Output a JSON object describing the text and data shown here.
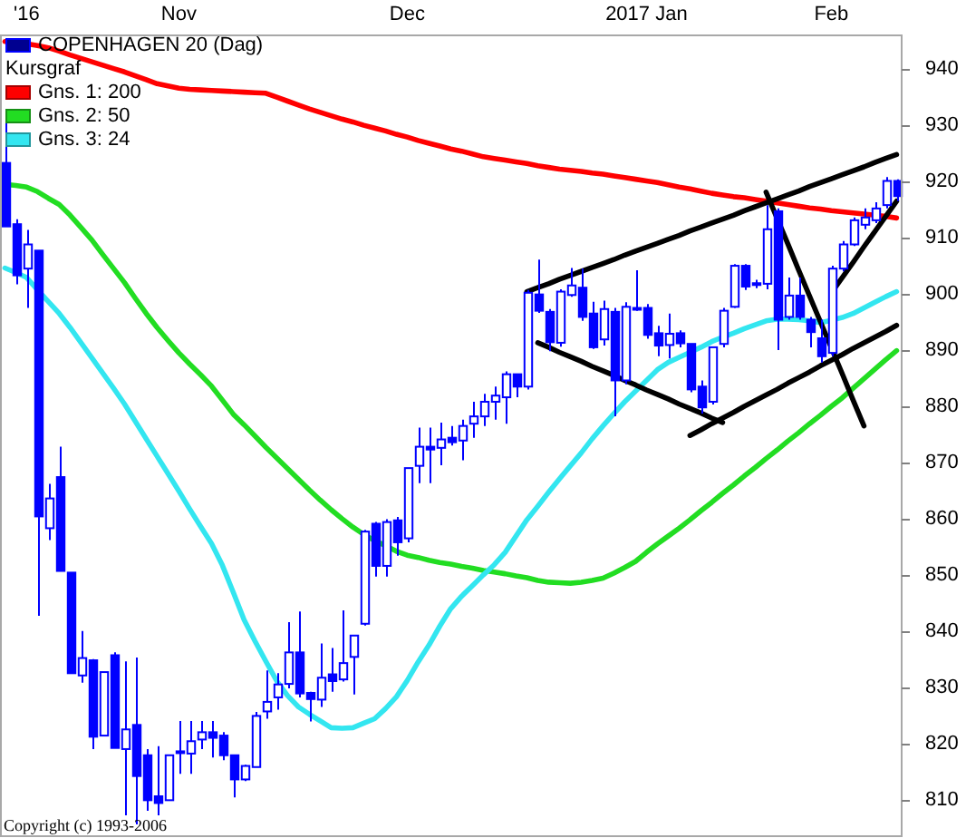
{
  "chart_data": {
    "type": "candlestick",
    "title": "COPENHAGEN 20 (Dag)",
    "color": "#0000ff",
    "categories": [
      null,
      null,
      "'16",
      null,
      null,
      null,
      null,
      null,
      null,
      null,
      null,
      null,
      null,
      null,
      null,
      null,
      "Nov",
      null,
      null,
      null,
      null,
      null,
      null,
      null,
      null,
      null,
      null,
      null,
      null,
      null,
      null,
      null,
      null,
      null,
      null,
      null,
      null,
      "Dec",
      null,
      null,
      null,
      null,
      null,
      null,
      null,
      null,
      null,
      null,
      null,
      null,
      null,
      null,
      null,
      null,
      null,
      null,
      null,
      null,
      null,
      "2017 Jan",
      null,
      null,
      null,
      null,
      null,
      null,
      null,
      null,
      null,
      null,
      null,
      null,
      null,
      null,
      null,
      null,
      "Feb",
      null,
      null,
      null,
      null,
      null,
      null
    ],
    "ohlc": [
      [
        923.3,
        931.4,
        912.0,
        912.0
      ],
      [
        912.4,
        913.3,
        901.7,
        903.3
      ],
      [
        904.5,
        911.4,
        897.5,
        908.8
      ],
      [
        907.7,
        907.7,
        842.7,
        860.4
      ],
      [
        858.3,
        866.2,
        856.2,
        863.6
      ],
      [
        867.4,
        872.8,
        850.7,
        850.7
      ],
      [
        850.4,
        850.4,
        832.5,
        832.5
      ],
      [
        832.1,
        840.0,
        830.8,
        835.2
      ],
      [
        834.8,
        835.0,
        819.0,
        821.2
      ],
      [
        821.4,
        832.7,
        821.4,
        832.7
      ],
      [
        835.7,
        836.2,
        819.2,
        819.2
      ],
      [
        819.0,
        834.6,
        807.2,
        822.5
      ],
      [
        823.3,
        835.3,
        805.6,
        814.2
      ],
      [
        817.9,
        819.0,
        808.0,
        809.9
      ],
      [
        810.6,
        819.5,
        807.2,
        809.4
      ],
      [
        809.9,
        818.0,
        809.9,
        817.9
      ],
      [
        818.3,
        824.0,
        814.6,
        818.6
      ],
      [
        818.2,
        824.0,
        814.6,
        820.4
      ],
      [
        820.7,
        824.0,
        819.0,
        822.0
      ],
      [
        822.0,
        824.0,
        817.5,
        821.0
      ],
      [
        821.4,
        822.0,
        817.0,
        817.9
      ],
      [
        817.9,
        818.0,
        810.4,
        813.6
      ],
      [
        813.6,
        816.2,
        813.3,
        816.0
      ],
      [
        815.8,
        825.6,
        815.8,
        824.9
      ],
      [
        825.7,
        833.0,
        824.4,
        827.4
      ],
      [
        828.2,
        832.5,
        826.0,
        830.5
      ],
      [
        830.6,
        841.6,
        829.8,
        836.2
      ],
      [
        836.2,
        843.5,
        828.2,
        828.9
      ],
      [
        829.0,
        829.2,
        823.9,
        827.9
      ],
      [
        827.8,
        837.8,
        826.5,
        831.7
      ],
      [
        832.3,
        837.0,
        829.2,
        831.1
      ],
      [
        831.4,
        843.7,
        831.0,
        834.3
      ],
      [
        835.4,
        839.2,
        828.7,
        839.2
      ],
      [
        841.3,
        858.0,
        841.0,
        857.7
      ],
      [
        859.1,
        859.4,
        849.7,
        851.6
      ],
      [
        851.6,
        859.9,
        849.7,
        859.4
      ],
      [
        859.7,
        860.3,
        853.4,
        855.8
      ],
      [
        856.5,
        869.0,
        855.8,
        869.0
      ],
      [
        869.4,
        876.2,
        866.3,
        872.8
      ],
      [
        872.8,
        876.2,
        866.3,
        872.3
      ],
      [
        872.6,
        877.1,
        869.5,
        874.1
      ],
      [
        874.4,
        876.5,
        873.0,
        873.6
      ],
      [
        873.9,
        877.6,
        870.4,
        876.5
      ],
      [
        876.9,
        880.8,
        874.4,
        878.2
      ],
      [
        878.2,
        882.2,
        876.5,
        880.8
      ],
      [
        880.8,
        883.5,
        877.6,
        881.9
      ],
      [
        881.6,
        886.2,
        876.9,
        885.7
      ],
      [
        885.7,
        885.7,
        881.6,
        883.5
      ],
      [
        883.5,
        900.7,
        883.0,
        900.2
      ],
      [
        899.9,
        906.1,
        896.6,
        897.0
      ],
      [
        896.8,
        897.3,
        889.8,
        891.4
      ],
      [
        891.3,
        900.8,
        890.6,
        900.4
      ],
      [
        899.8,
        904.6,
        899.5,
        901.5
      ],
      [
        901.1,
        904.5,
        895.2,
        895.9
      ],
      [
        896.5,
        898.6,
        890.2,
        890.5
      ],
      [
        891.9,
        898.8,
        890.8,
        897.3
      ],
      [
        896.8,
        897.5,
        878.2,
        884.6
      ],
      [
        884.6,
        898.5,
        883.9,
        897.7
      ],
      [
        897.3,
        904.2,
        897.0,
        897.5
      ],
      [
        897.5,
        898.2,
        892.0,
        892.7
      ],
      [
        893.0,
        894.3,
        888.9,
        890.8
      ],
      [
        890.9,
        896.5,
        888.5,
        892.9
      ],
      [
        893.0,
        893.5,
        890.5,
        891.2
      ],
      [
        891.1,
        891.1,
        882.5,
        883.0
      ],
      [
        883.5,
        884.6,
        878.7,
        879.8
      ],
      [
        880.8,
        890.5,
        880.3,
        890.5
      ],
      [
        891.1,
        897.5,
        890.5,
        897.0
      ],
      [
        897.7,
        905.3,
        897.5,
        905.0
      ],
      [
        905.0,
        905.3,
        900.7,
        901.3
      ],
      [
        901.6,
        902.5,
        901.0,
        901.9
      ],
      [
        901.8,
        915.8,
        900.8,
        911.5
      ],
      [
        914.7,
        915.2,
        890.0,
        895.4
      ],
      [
        895.9,
        902.9,
        895.4,
        899.7
      ],
      [
        899.7,
        902.9,
        895.4,
        895.9
      ],
      [
        895.4,
        895.9,
        890.5,
        893.2
      ],
      [
        892.1,
        895.4,
        887.8,
        888.9
      ],
      [
        889.5,
        905.0,
        888.9,
        904.5
      ],
      [
        904.5,
        909.4,
        904.0,
        908.8
      ],
      [
        908.8,
        913.6,
        908.5,
        913.1
      ],
      [
        912.3,
        915.2,
        911.5,
        913.6
      ],
      [
        913.1,
        916.3,
        912.6,
        915.2
      ],
      [
        915.8,
        920.8,
        915.2,
        920.1
      ],
      [
        920.1,
        920.4,
        916.5,
        917.4
      ]
    ],
    "series": [
      {
        "type": "line",
        "name": "Gns. 1: 200",
        "color": "#ff0000",
        "values": [
          944.9,
          944.7,
          944.5,
          944.2,
          943.8,
          943.2,
          942.5,
          941.9,
          941.3,
          940.7,
          940.1,
          939.5,
          938.8,
          938.1,
          937.4,
          937.0,
          936.6,
          936.4,
          936.3,
          936.2,
          936.1,
          936.0,
          935.9,
          935.8,
          935.7,
          935.0,
          934.3,
          933.6,
          932.9,
          932.3,
          931.7,
          931.1,
          930.6,
          930.0,
          929.5,
          929.0,
          928.4,
          927.9,
          927.3,
          926.8,
          926.3,
          925.8,
          925.4,
          924.9,
          924.4,
          924.1,
          923.8,
          923.5,
          923.2,
          922.8,
          922.5,
          922.2,
          922.0,
          921.8,
          921.5,
          921.3,
          921.0,
          920.7,
          920.4,
          920.1,
          919.8,
          919.4,
          919.0,
          918.7,
          918.3,
          917.9,
          917.6,
          917.3,
          917.1,
          916.8,
          916.5,
          916.2,
          915.9,
          915.6,
          915.3,
          915.1,
          914.8,
          914.6,
          914.4,
          914.2,
          914.0,
          913.8,
          913.5
        ]
      },
      {
        "type": "line",
        "name": "Gns. 2: 50",
        "color": "#22dd22",
        "values": [
          919.5,
          919.3,
          919.0,
          918.2,
          917.0,
          915.9,
          914.0,
          911.8,
          909.6,
          907.0,
          904.5,
          902.0,
          899.2,
          896.5,
          894.0,
          891.7,
          889.5,
          887.5,
          885.6,
          883.6,
          881.1,
          878.6,
          876.7,
          874.7,
          872.7,
          870.8,
          868.9,
          867.0,
          865.1,
          863.3,
          861.6,
          860.0,
          858.5,
          857.2,
          856.1,
          855.2,
          854.2,
          853.5,
          853.1,
          852.6,
          852.2,
          851.9,
          851.5,
          851.2,
          850.8,
          850.5,
          850.2,
          849.8,
          849.5,
          849.0,
          848.7,
          848.6,
          848.5,
          848.7,
          849.0,
          849.4,
          850.3,
          851.3,
          852.4,
          854.0,
          855.5,
          856.9,
          858.3,
          859.8,
          861.4,
          862.9,
          864.5,
          866.0,
          867.6,
          869.1,
          870.7,
          872.2,
          873.8,
          875.3,
          876.9,
          878.4,
          880.0,
          881.5,
          883.2,
          884.9,
          886.6,
          888.3,
          889.9
        ]
      },
      {
        "type": "line",
        "name": "Gns. 3: 24",
        "color": "#33e6f0",
        "values": [
          904.6,
          903.8,
          902.9,
          900.7,
          898.6,
          896.5,
          894.0,
          891.3,
          888.6,
          885.9,
          883.2,
          880.4,
          877.3,
          874.2,
          871.1,
          868.0,
          864.9,
          861.7,
          858.6,
          855.6,
          851.7,
          846.9,
          842.0,
          838.2,
          834.6,
          831.1,
          828.5,
          826.5,
          825.2,
          824.0,
          822.8,
          822.7,
          822.8,
          823.6,
          824.4,
          826.2,
          828.3,
          831.2,
          834.5,
          837.5,
          840.9,
          844.0,
          846.2,
          848.1,
          850.0,
          851.8,
          854.0,
          856.9,
          859.8,
          862.2,
          864.7,
          867.1,
          869.4,
          871.7,
          874.2,
          876.5,
          878.7,
          880.8,
          882.7,
          884.6,
          886.5,
          887.8,
          888.7,
          889.6,
          890.5,
          891.5,
          892.3,
          893.0,
          893.8,
          894.5,
          895.2,
          895.5,
          895.5,
          895.4,
          895.2,
          894.9,
          895.3,
          895.8,
          896.5,
          897.5,
          898.5,
          899.5,
          900.4
        ]
      },
      {
        "type": "line",
        "color": "#000000",
        "values": [
          null,
          null,
          null,
          null,
          null,
          null,
          null,
          null,
          null,
          null,
          null,
          null,
          null,
          null,
          null,
          null,
          null,
          null,
          null,
          null,
          null,
          null,
          null,
          null,
          null,
          null,
          null,
          null,
          null,
          null,
          null,
          null,
          null,
          null,
          null,
          null,
          null,
          null,
          null,
          null,
          null,
          null,
          null,
          null,
          null,
          null,
          null,
          null,
          900.4,
          901.1,
          901.8,
          902.6,
          903.3,
          904.0,
          904.7,
          905.4,
          906.1,
          906.9,
          907.6,
          908.3,
          909.0,
          909.7,
          910.4,
          911.2,
          911.9,
          912.6,
          913.3,
          914.0,
          914.8,
          915.5,
          916.2,
          916.9,
          917.6,
          918.3,
          919.1,
          919.8,
          920.5,
          921.2,
          921.9,
          922.6,
          923.4,
          924.1,
          924.8
        ]
      },
      {
        "type": "line",
        "color": "#000000",
        "values": [
          null,
          null,
          null,
          null,
          null,
          null,
          null,
          null,
          null,
          null,
          null,
          null,
          null,
          null,
          null,
          null,
          null,
          null,
          null,
          null,
          null,
          null,
          null,
          null,
          null,
          null,
          null,
          null,
          null,
          null,
          null,
          null,
          null,
          null,
          null,
          null,
          null,
          null,
          null,
          null,
          null,
          null,
          null,
          null,
          null,
          null,
          null,
          null,
          null,
          891.3,
          890.5,
          889.6,
          888.8,
          888.0,
          887.1,
          886.3,
          885.5,
          884.6,
          883.8,
          882.9,
          882.1,
          881.3,
          880.4,
          879.6,
          878.8,
          877.9,
          877.1,
          null,
          null,
          null,
          null,
          null,
          null,
          null,
          null,
          null,
          null,
          null,
          null,
          null,
          null,
          null,
          null
        ]
      },
      {
        "type": "line",
        "color": "#000000",
        "values": [
          null,
          null,
          null,
          null,
          null,
          null,
          null,
          null,
          null,
          null,
          null,
          null,
          null,
          null,
          null,
          null,
          null,
          null,
          null,
          null,
          null,
          null,
          null,
          null,
          null,
          null,
          null,
          null,
          null,
          null,
          null,
          null,
          null,
          null,
          null,
          null,
          null,
          null,
          null,
          null,
          null,
          null,
          null,
          null,
          null,
          null,
          null,
          null,
          null,
          null,
          null,
          null,
          null,
          null,
          null,
          null,
          null,
          null,
          null,
          null,
          null,
          null,
          null,
          874.8,
          875.8,
          876.9,
          877.9,
          878.9,
          880.0,
          881.0,
          882.0,
          883.0,
          884.1,
          885.1,
          886.1,
          887.2,
          888.2,
          889.2,
          890.3,
          891.3,
          892.3,
          893.3,
          894.4
        ]
      },
      {
        "type": "line",
        "color": "#000000",
        "values": [
          null,
          null,
          null,
          null,
          null,
          null,
          null,
          null,
          null,
          null,
          null,
          null,
          null,
          null,
          null,
          null,
          null,
          null,
          null,
          null,
          null,
          null,
          null,
          null,
          null,
          null,
          null,
          null,
          null,
          null,
          null,
          null,
          null,
          null,
          null,
          null,
          null,
          null,
          null,
          null,
          null,
          null,
          null,
          null,
          null,
          null,
          null,
          null,
          null,
          null,
          null,
          null,
          null,
          null,
          null,
          null,
          null,
          null,
          null,
          null,
          null,
          null,
          null,
          null,
          null,
          null,
          null,
          null,
          null,
          null,
          918.1,
          913.5,
          908.9,
          904.2,
          899.6,
          895.0,
          890.4,
          885.8,
          881.1,
          876.5,
          null,
          null,
          null
        ]
      },
      {
        "type": "line",
        "color": "#000000",
        "values": [
          null,
          null,
          null,
          null,
          null,
          null,
          null,
          null,
          null,
          null,
          null,
          null,
          null,
          null,
          null,
          null,
          null,
          null,
          null,
          null,
          null,
          null,
          null,
          null,
          null,
          null,
          null,
          null,
          null,
          null,
          null,
          null,
          null,
          null,
          null,
          null,
          null,
          null,
          null,
          null,
          null,
          null,
          null,
          null,
          null,
          null,
          null,
          null,
          null,
          null,
          null,
          null,
          null,
          null,
          null,
          null,
          null,
          null,
          null,
          null,
          null,
          null,
          null,
          null,
          null,
          null,
          null,
          null,
          null,
          null,
          null,
          null,
          null,
          null,
          null,
          null,
          900.2,
          902.9,
          905.6,
          908.4,
          911.1,
          913.8,
          916.5
        ]
      }
    ],
    "ylim": [
      803.5,
      946
    ],
    "yticks": [
      810,
      820,
      830,
      840,
      850,
      860,
      870,
      880,
      890,
      900,
      910,
      920,
      930,
      940
    ],
    "legend": "top left",
    "legend_title": "Kursgraf",
    "annotations": [
      "Copyright (c) 1993-2006"
    ]
  }
}
